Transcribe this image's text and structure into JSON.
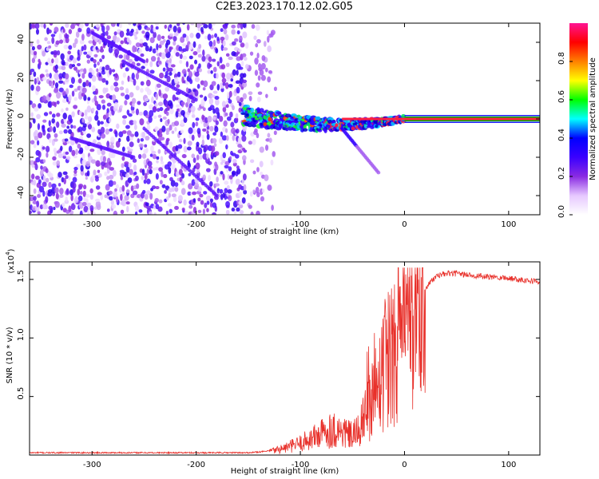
{
  "figure_title": "C2E3.2023.170.12.02.G05",
  "chart_data": [
    {
      "type": "heatmap",
      "title": "C2E3.2023.170.12.02.G05",
      "xlabel": "Height of straight line (km)",
      "ylabel": "Frequency (Hz)",
      "xlim": [
        -360,
        130
      ],
      "ylim": [
        -50,
        50
      ],
      "xticks": [
        -300,
        -200,
        -100,
        0,
        100
      ],
      "yticks": [
        -40,
        -20,
        0,
        20,
        40
      ],
      "xtick_labels": [
        "-300",
        "-200",
        "-100",
        "0",
        "100"
      ],
      "ytick_labels": [
        "-40",
        "-20",
        "0",
        "20",
        "40"
      ],
      "colorbar": {
        "label": "Normalized spectral amplitude",
        "range": [
          0,
          1
        ],
        "ticks": [
          0.0,
          0.2,
          0.4,
          0.6,
          0.8
        ],
        "tick_labels": [
          "0.0",
          "0.2",
          "0.4",
          "0.6",
          "0.8"
        ],
        "colors": [
          "#ffffff",
          "#e6c8ff",
          "#8a2be2",
          "#3a00ff",
          "#0000ff",
          "#00ffff",
          "#00ff00",
          "#ffff00",
          "#ff8000",
          "#ff0000",
          "#ff1493"
        ]
      },
      "features": {
        "noise_region_km": [
          -360,
          -125
        ],
        "dense_noise_region_km": [
          -360,
          -155
        ],
        "carrier_emergence_km": -155,
        "carrier_steady_km": 0,
        "carrier_frequency_hz": 0,
        "tail_descent": {
          "start_km": -60,
          "end_km": -25,
          "start_hz": -5,
          "end_hz": -28
        }
      }
    },
    {
      "type": "line",
      "xlabel": "Height of straight line (km)",
      "ylabel": "SNR (10 * v/v)",
      "y_multiplier_label": "(x10",
      "y_multiplier_exp": "4",
      "xlim": [
        -360,
        130
      ],
      "ylim": [
        0.0,
        1.65
      ],
      "xticks": [
        -300,
        -200,
        -100,
        0,
        100
      ],
      "yticks": [
        0.5,
        1.0,
        1.5
      ],
      "xtick_labels": [
        "-300",
        "-200",
        "-100",
        "0",
        "100"
      ],
      "ytick_labels": [
        "0.5",
        "1.0",
        "1.5"
      ],
      "series": [
        {
          "name": "SNR",
          "color": "#e8302a",
          "x": [
            -360,
            -300,
            -250,
            -200,
            -150,
            -135,
            -125,
            -115,
            -100,
            -90,
            -80,
            -70,
            -60,
            -50,
            -45,
            -40,
            -35,
            -30,
            -25,
            -20,
            -15,
            -10,
            -5,
            0,
            5,
            10,
            15,
            20,
            25,
            30,
            35,
            40,
            50,
            60,
            70,
            80,
            90,
            100,
            110,
            120,
            130
          ],
          "values": [
            0.02,
            0.02,
            0.02,
            0.02,
            0.02,
            0.03,
            0.04,
            0.06,
            0.1,
            0.14,
            0.18,
            0.22,
            0.2,
            0.16,
            0.2,
            0.28,
            0.38,
            0.5,
            0.65,
            0.75,
            0.85,
            0.95,
            1.02,
            1.08,
            1.18,
            1.28,
            1.35,
            1.42,
            1.48,
            1.52,
            1.54,
            1.55,
            1.55,
            1.54,
            1.53,
            1.52,
            1.52,
            1.51,
            1.5,
            1.49,
            1.48
          ]
        }
      ]
    }
  ]
}
